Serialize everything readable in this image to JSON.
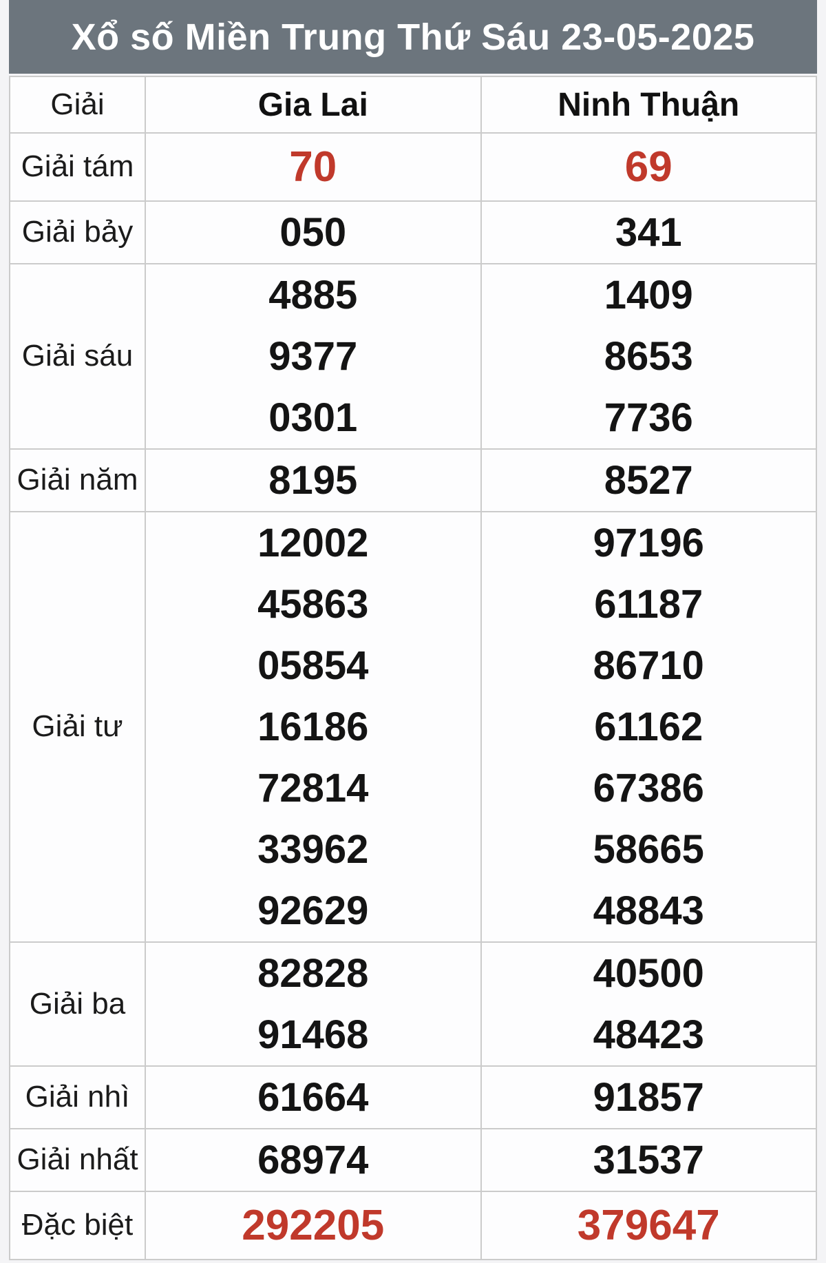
{
  "title": "Xổ số Miền Trung Thứ Sáu 23-05-2025",
  "columns": {
    "prize": "Giải",
    "city1": "Gia Lai",
    "city2": "Ninh Thuận"
  },
  "colors": {
    "title_bar_bg": "#6c757d",
    "title_text": "#ffffff",
    "highlight_red": "#c0392b",
    "number_black": "#141414",
    "border": "#cbcbcb"
  },
  "rows": [
    {
      "prize": "Giải tám",
      "highlight": true,
      "gia_lai": [
        "70"
      ],
      "ninh_thuan": [
        "69"
      ]
    },
    {
      "prize": "Giải bảy",
      "highlight": false,
      "gia_lai": [
        "050"
      ],
      "ninh_thuan": [
        "341"
      ]
    },
    {
      "prize": "Giải sáu",
      "highlight": false,
      "gia_lai": [
        "4885",
        "9377",
        "0301"
      ],
      "ninh_thuan": [
        "1409",
        "8653",
        "7736"
      ]
    },
    {
      "prize": "Giải năm",
      "highlight": false,
      "gia_lai": [
        "8195"
      ],
      "ninh_thuan": [
        "8527"
      ]
    },
    {
      "prize": "Giải tư",
      "highlight": false,
      "gia_lai": [
        "12002",
        "45863",
        "05854",
        "16186",
        "72814",
        "33962",
        "92629"
      ],
      "ninh_thuan": [
        "97196",
        "61187",
        "86710",
        "61162",
        "67386",
        "58665",
        "48843"
      ]
    },
    {
      "prize": "Giải ba",
      "highlight": false,
      "gia_lai": [
        "82828",
        "91468"
      ],
      "ninh_thuan": [
        "40500",
        "48423"
      ]
    },
    {
      "prize": "Giải nhì",
      "highlight": false,
      "gia_lai": [
        "61664"
      ],
      "ninh_thuan": [
        "91857"
      ]
    },
    {
      "prize": "Giải nhất",
      "highlight": false,
      "gia_lai": [
        "68974"
      ],
      "ninh_thuan": [
        "31537"
      ]
    },
    {
      "prize": "Đặc biệt",
      "highlight": true,
      "gia_lai": [
        "292205"
      ],
      "ninh_thuan": [
        "379647"
      ]
    }
  ]
}
